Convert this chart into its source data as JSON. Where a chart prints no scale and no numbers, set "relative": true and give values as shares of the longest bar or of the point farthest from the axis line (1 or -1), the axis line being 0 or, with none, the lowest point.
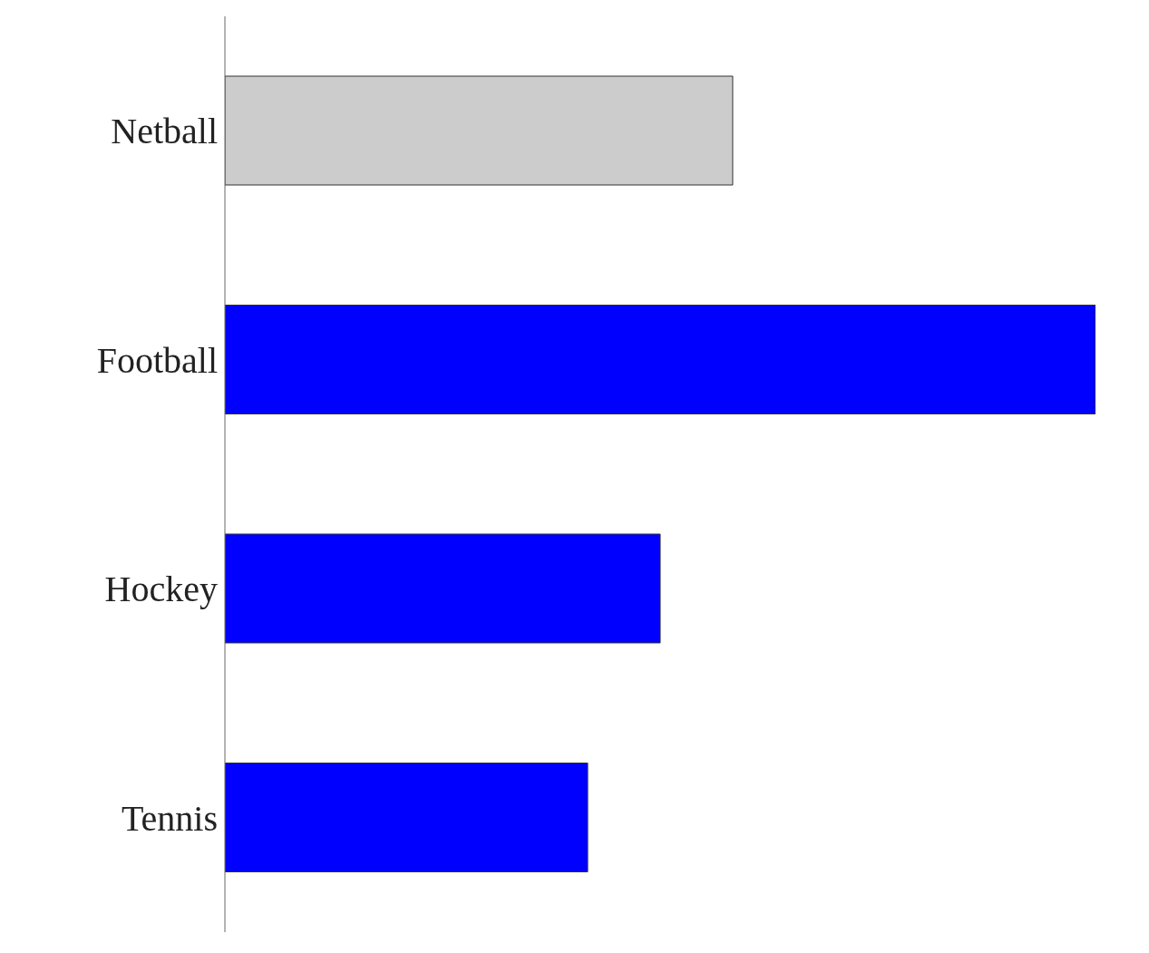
{
  "chart_data": {
    "type": "bar",
    "orientation": "horizontal",
    "relative": true,
    "categories": [
      "Netball",
      "Football",
      "Hockey",
      "Tennis"
    ],
    "values": [
      0.5833,
      1,
      0.5,
      0.4167
    ],
    "colors": [
      "#cccccc",
      "#0000ff",
      "#0000ff",
      "#0000ff"
    ]
  }
}
